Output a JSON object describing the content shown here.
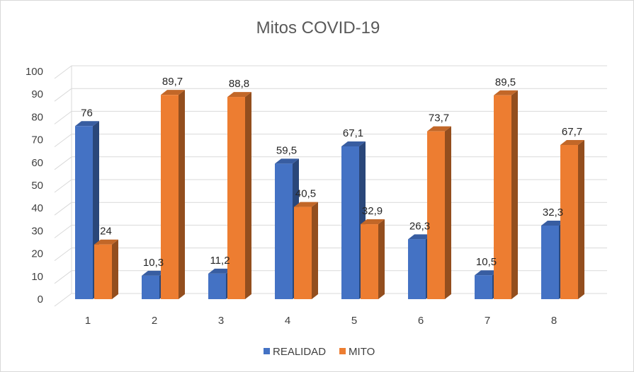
{
  "chart_data": {
    "type": "bar",
    "title": "Mitos COVID-19",
    "categories": [
      "1",
      "2",
      "3",
      "4",
      "5",
      "6",
      "7",
      "8"
    ],
    "series": [
      {
        "name": "REALIDAD",
        "color": "#4472c4",
        "values": [
          76,
          10.3,
          11.2,
          59.5,
          67.1,
          26.3,
          10.5,
          32.3
        ],
        "labels": [
          "76",
          "10,3",
          "11,2",
          "59,5",
          "67,1",
          "26,3",
          "10,5",
          "32,3"
        ]
      },
      {
        "name": "MITO",
        "color": "#ed7d31",
        "values": [
          24,
          89.7,
          88.8,
          40.5,
          32.9,
          73.7,
          89.5,
          67.7
        ],
        "labels": [
          "24",
          "89,7",
          "88,8",
          "40,5",
          "32,9",
          "73,7",
          "89,5",
          "67,7"
        ]
      }
    ],
    "ylim": [
      0,
      100
    ],
    "yticks": [
      "0",
      "10",
      "20",
      "30",
      "40",
      "50",
      "60",
      "70",
      "80",
      "90",
      "100"
    ],
    "xlabel": "",
    "ylabel": "",
    "grid": true,
    "legend": "bottom"
  }
}
